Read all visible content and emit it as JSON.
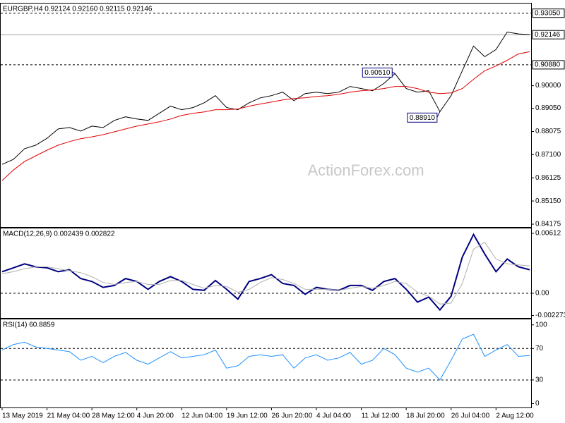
{
  "chart_data": [
    {
      "type": "line",
      "title": "EURGBP,H4  0.92124 0.92160 0.92115 0.92146",
      "watermark": "ActionForex.com",
      "ylim": [
        0.84056,
        0.93457
      ],
      "yticks": [
        {
          "value": 0.9,
          "label": "0.90000"
        },
        {
          "value": 0.8905,
          "label": "0.89050"
        },
        {
          "value": 0.88075,
          "label": "0.88075"
        },
        {
          "value": 0.871,
          "label": "0.87100"
        },
        {
          "value": 0.86125,
          "label": "0.86125"
        },
        {
          "value": 0.8515,
          "label": "0.85150"
        },
        {
          "value": 0.84175,
          "label": "0.84175"
        }
      ],
      "series": [
        {
          "color": "#000000",
          "values": [
            0.8669,
            0.869,
            0.8735,
            0.875,
            0.8779,
            0.8818,
            0.8824,
            0.8809,
            0.883,
            0.8824,
            0.8854,
            0.8869,
            0.886,
            0.8854,
            0.8884,
            0.8914,
            0.8899,
            0.8908,
            0.8928,
            0.8958,
            0.8908,
            0.8899,
            0.8928,
            0.8949,
            0.8958,
            0.8973,
            0.8937,
            0.8967,
            0.8973,
            0.8967,
            0.8973,
            0.8997,
            0.8988,
            0.8979,
            0.9009,
            0.9051,
            0.8988,
            0.8973,
            0.8979,
            0.8891,
            0.8958,
            0.9063,
            0.9167,
            0.9122,
            0.9152,
            0.9226,
            0.9218,
            0.9215
          ]
        },
        {
          "color": "#e00000",
          "values": [
            0.8601,
            0.8645,
            0.8681,
            0.8705,
            0.8729,
            0.875,
            0.8765,
            0.8777,
            0.8785,
            0.8794,
            0.8806,
            0.8818,
            0.883,
            0.8839,
            0.8848,
            0.886,
            0.8875,
            0.8884,
            0.889,
            0.8899,
            0.8899,
            0.8902,
            0.8914,
            0.8923,
            0.8931,
            0.894,
            0.8946,
            0.8949,
            0.8955,
            0.8958,
            0.8964,
            0.8973,
            0.8979,
            0.8982,
            0.8988,
            0.8997,
            0.8997,
            0.8988,
            0.8973,
            0.8967,
            0.897,
            0.8988,
            0.9027,
            0.9063,
            0.9083,
            0.9107,
            0.9134,
            0.9143
          ]
        }
      ],
      "levels": [
        {
          "value": 0.9305,
          "label": "0.93050",
          "style": "dashed"
        },
        {
          "value": 0.92146,
          "label": "0.92146",
          "style": "solid"
        },
        {
          "value": 0.9088,
          "label": "0.90880",
          "style": "dashed"
        }
      ],
      "points": [
        {
          "value": 0.9051,
          "label": "0.90510"
        },
        {
          "value": 0.8891,
          "label": "0.88910"
        }
      ]
    },
    {
      "type": "line",
      "title": "MACD(12,26,9) 0.002439 0.002822",
      "ylim": [
        -0.00252,
        0.00662
      ],
      "yticks": [
        {
          "value": 0.00612,
          "label": "0.00612"
        },
        {
          "value": 0,
          "label": "0.00"
        },
        {
          "value": -0.002273,
          "label": "-0.002273"
        }
      ],
      "levels": [
        {
          "value": 0,
          "style": "dashed"
        }
      ],
      "series": [
        {
          "color": "#000080",
          "values": [
            0.0022,
            0.0026,
            0.003,
            0.0027,
            0.0026,
            0.0022,
            0.0024,
            0.0015,
            0.0012,
            0.0006,
            0.0008,
            0.0015,
            0.0012,
            0.0004,
            0.0012,
            0.0017,
            0.0012,
            0.0004,
            0.0003,
            0.0013,
            0.0004,
            -0.0006,
            0.0012,
            0.0015,
            0.0019,
            0.001,
            0.0008,
            -0.0001,
            0.0006,
            0.0004,
            0.0003,
            0.0008,
            0.0008,
            0.0003,
            0.0012,
            0.0015,
            0.0004,
            -0.0009,
            -0.0004,
            -0.0017,
            -0.0003,
            0.0037,
            0.006,
            0.004,
            0.0022,
            0.0035,
            0.0027,
            0.0024
          ]
        },
        {
          "color": "#b0b0b0",
          "values": [
            0.002,
            0.0022,
            0.0025,
            0.0027,
            0.0027,
            0.0025,
            0.0023,
            0.0021,
            0.0017,
            0.0011,
            0.0009,
            0.0011,
            0.0012,
            0.0009,
            0.0009,
            0.0013,
            0.0013,
            0.0009,
            0.0005,
            0.0008,
            0.0007,
            0.0001,
            0.0004,
            0.0011,
            0.0016,
            0.0014,
            0.001,
            0.0004,
            0.0004,
            0.0004,
            0.0003,
            0.0005,
            0.0007,
            0.0005,
            0.0008,
            0.0012,
            0.001,
            0.0001,
            -0.0003,
            -0.0011,
            -0.001,
            0.001,
            0.0045,
            0.0052,
            0.0035,
            0.003,
            0.0029,
            0.0028
          ]
        }
      ]
    },
    {
      "type": "line",
      "title": "RSI(14) 60.8859",
      "ylim": [
        -5,
        107
      ],
      "yticks": [
        0,
        30,
        70,
        100
      ],
      "levels": [
        {
          "value": 30,
          "style": "dashed"
        },
        {
          "value": 70,
          "style": "dashed"
        }
      ],
      "categories": [
        "13 May 2019",
        null,
        null,
        null,
        "21 May 04:00",
        null,
        null,
        null,
        "28 May 12:00",
        null,
        null,
        null,
        "4 Jun 20:00",
        null,
        null,
        null,
        "12 Jun 04:00",
        null,
        null,
        null,
        "19 Jun 12:00",
        null,
        null,
        null,
        "26 Jun 20:00",
        null,
        null,
        null,
        "4 Jul 04:00",
        null,
        null,
        null,
        "11 Jul 12:00",
        null,
        null,
        null,
        "18 Jul 20:00",
        null,
        null,
        null,
        "26 Jul 04:00",
        null,
        null,
        null,
        "2 Aug 12:00",
        null,
        null,
        null
      ],
      "series": [
        {
          "color": "#1e90ff",
          "values": [
            68,
            75,
            78,
            72,
            70,
            68,
            66,
            55,
            60,
            52,
            60,
            65,
            55,
            50,
            58,
            66,
            58,
            60,
            62,
            68,
            45,
            48,
            60,
            62,
            60,
            62,
            45,
            58,
            62,
            55,
            58,
            65,
            50,
            55,
            70,
            62,
            45,
            40,
            45,
            30,
            55,
            82,
            88,
            60,
            68,
            75,
            60,
            61
          ]
        }
      ]
    }
  ]
}
